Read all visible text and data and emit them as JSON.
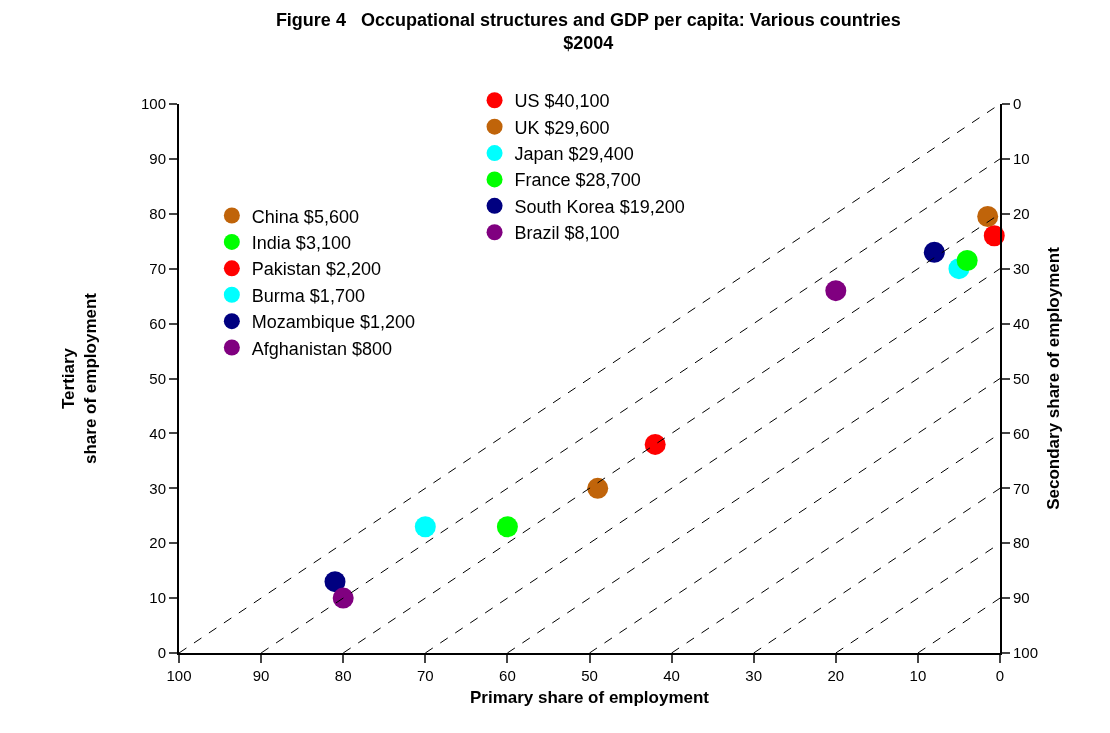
{
  "chart_data": {
    "type": "scatter",
    "title": "Figure 4   Occupational structures and GDP per capita: Various countries\n$2004",
    "xlabel": "Primary share of employment",
    "ylabel": "Tertiary\nshare of employment",
    "y2label": "Secondary share of employment",
    "xlim": [
      100,
      0
    ],
    "xticks": [
      100,
      90,
      80,
      70,
      60,
      50,
      40,
      30,
      20,
      10,
      0
    ],
    "ylim": [
      0,
      100
    ],
    "yticks": [
      0,
      10,
      20,
      30,
      40,
      50,
      60,
      70,
      80,
      90,
      100
    ],
    "y2lim": [
      100,
      0
    ],
    "y2ticks": [
      0,
      10,
      20,
      30,
      40,
      50,
      60,
      70,
      80,
      90,
      100
    ],
    "legend": "top left",
    "marker": "circle",
    "series": [
      {
        "name": "US $40,100",
        "color": "#ff0000",
        "x": [
          0.7
        ],
        "values": [
          76
        ]
      },
      {
        "name": "UK $29,600",
        "color": "#c0640a",
        "x": [
          1.5
        ],
        "values": [
          79.5
        ]
      },
      {
        "name": "Japan $29,400",
        "color": "#00ffff",
        "x": [
          5
        ],
        "values": [
          70
        ]
      },
      {
        "name": "France $28,700",
        "color": "#00ff00",
        "x": [
          4
        ],
        "values": [
          71.5
        ]
      },
      {
        "name": "South Korea $19,200",
        "color": "#000080",
        "x": [
          8
        ],
        "values": [
          73
        ]
      },
      {
        "name": "Brazil $8,100",
        "color": "#800080",
        "x": [
          20
        ],
        "values": [
          66
        ]
      },
      {
        "name": "China $5,600",
        "color": "#c0640a",
        "x": [
          49
        ],
        "values": [
          30
        ]
      },
      {
        "name": "India $3,100",
        "color": "#00ff00",
        "x": [
          60
        ],
        "values": [
          23
        ]
      },
      {
        "name": "Pakistan $2,200",
        "color": "#ff0000",
        "x": [
          42
        ],
        "values": [
          38
        ]
      },
      {
        "name": "Burma $1,700",
        "color": "#00ffff",
        "x": [
          70
        ],
        "values": [
          23
        ]
      },
      {
        "name": "Mozambique $1,200",
        "color": "#000080",
        "x": [
          81
        ],
        "values": [
          13
        ]
      },
      {
        "name": "Afghanistan $800",
        "color": "#800080",
        "x": [
          80
        ],
        "values": [
          10
        ]
      },
      {
        "type": "line",
        "color": "#000000",
        "line_style": "dashed",
        "marker": "none",
        "x": [
          100,
          0
        ],
        "values": [
          0,
          100
        ]
      },
      {
        "type": "line",
        "color": "#000000",
        "line_style": "dashed",
        "marker": "none",
        "x": [
          90,
          0
        ],
        "values": [
          0,
          90
        ]
      },
      {
        "type": "line",
        "color": "#000000",
        "line_style": "dashed",
        "marker": "none",
        "x": [
          80,
          0
        ],
        "values": [
          0,
          80
        ]
      },
      {
        "type": "line",
        "color": "#000000",
        "line_style": "dashed",
        "marker": "none",
        "x": [
          70,
          0
        ],
        "values": [
          0,
          70
        ]
      },
      {
        "type": "line",
        "color": "#000000",
        "line_style": "dashed",
        "marker": "none",
        "x": [
          60,
          0
        ],
        "values": [
          0,
          60
        ]
      },
      {
        "type": "line",
        "color": "#000000",
        "line_style": "dashed",
        "marker": "none",
        "x": [
          50,
          0
        ],
        "values": [
          0,
          50
        ]
      },
      {
        "type": "line",
        "color": "#000000",
        "line_style": "dashed",
        "marker": "none",
        "x": [
          40,
          0
        ],
        "values": [
          0,
          40
        ]
      },
      {
        "type": "line",
        "color": "#000000",
        "line_style": "dashed",
        "marker": "none",
        "x": [
          30,
          0
        ],
        "values": [
          0,
          30
        ]
      },
      {
        "type": "line",
        "color": "#000000",
        "line_style": "dashed",
        "marker": "none",
        "x": [
          20,
          0
        ],
        "values": [
          0,
          20
        ]
      },
      {
        "type": "line",
        "color": "#000000",
        "line_style": "dashed",
        "marker": "none",
        "x": [
          10,
          0
        ],
        "values": [
          0,
          10
        ]
      }
    ]
  }
}
